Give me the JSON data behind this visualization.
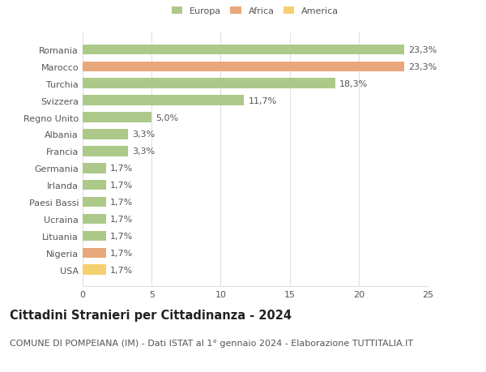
{
  "categories": [
    "Romania",
    "Marocco",
    "Turchia",
    "Svizzera",
    "Regno Unito",
    "Albania",
    "Francia",
    "Germania",
    "Irlanda",
    "Paesi Bassi",
    "Ucraina",
    "Lituania",
    "Nigeria",
    "USA"
  ],
  "values": [
    23.3,
    23.3,
    18.3,
    11.7,
    5.0,
    3.3,
    3.3,
    1.7,
    1.7,
    1.7,
    1.7,
    1.7,
    1.7,
    1.7
  ],
  "labels": [
    "23,3%",
    "23,3%",
    "18,3%",
    "11,7%",
    "5,0%",
    "3,3%",
    "3,3%",
    "1,7%",
    "1,7%",
    "1,7%",
    "1,7%",
    "1,7%",
    "1,7%",
    "1,7%"
  ],
  "colors": [
    "#adc98a",
    "#e8a87c",
    "#adc98a",
    "#adc98a",
    "#adc98a",
    "#adc98a",
    "#adc98a",
    "#adc98a",
    "#adc98a",
    "#adc98a",
    "#adc98a",
    "#adc98a",
    "#e8a87c",
    "#f5d070"
  ],
  "legend_labels": [
    "Europa",
    "Africa",
    "America"
  ],
  "legend_colors": [
    "#adc98a",
    "#e8a87c",
    "#f5d070"
  ],
  "title": "Cittadini Stranieri per Cittadinanza - 2024",
  "subtitle": "COMUNE DI POMPEIANA (IM) - Dati ISTAT al 1° gennaio 2024 - Elaborazione TUTTITALIA.IT",
  "xlim": [
    0,
    25
  ],
  "xticks": [
    0,
    5,
    10,
    15,
    20,
    25
  ],
  "bg_color": "#ffffff",
  "grid_color": "#e0e0e0",
  "bar_height": 0.6,
  "label_fontsize": 8,
  "title_fontsize": 10.5,
  "subtitle_fontsize": 8,
  "ytick_fontsize": 8,
  "xtick_fontsize": 8
}
